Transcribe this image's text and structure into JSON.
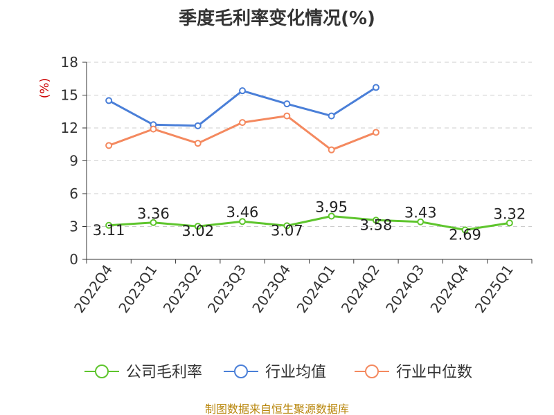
{
  "title": "季度毛利率变化情况(%)",
  "source": "制图数据来自恒生聚源数据库",
  "colors": {
    "company": "#5ec52d",
    "industry_avg": "#4a7fd8",
    "industry_median": "#f4895f",
    "unit_label": "#cc0000",
    "source": "#b8860b"
  },
  "chart_data": {
    "type": "line",
    "title": "季度毛利率变化情况(%)",
    "ylabel": "(%)",
    "xlabel": "",
    "ylim": [
      0,
      18
    ],
    "yticks": [
      0,
      3,
      6,
      9,
      12,
      15,
      18
    ],
    "grid": true,
    "legend_position": "bottom",
    "categories": [
      "2022Q4",
      "2023Q1",
      "2023Q2",
      "2023Q3",
      "2023Q4",
      "2024Q1",
      "2024Q2",
      "2024Q3",
      "2024Q4",
      "2025Q1"
    ],
    "series": [
      {
        "name": "公司毛利率",
        "color": "#5ec52d",
        "values": [
          3.11,
          3.36,
          3.02,
          3.46,
          3.07,
          3.95,
          3.58,
          3.43,
          2.69,
          3.32
        ],
        "labels": true
      },
      {
        "name": "行业均值",
        "color": "#4a7fd8",
        "values": [
          14.5,
          12.3,
          12.2,
          15.4,
          14.2,
          13.1,
          15.7,
          null,
          null,
          null
        ],
        "labels": false
      },
      {
        "name": "行业中位数",
        "color": "#f4895f",
        "values": [
          10.4,
          11.9,
          10.6,
          12.5,
          13.1,
          10.0,
          11.6,
          null,
          null,
          null
        ],
        "labels": false
      }
    ]
  }
}
